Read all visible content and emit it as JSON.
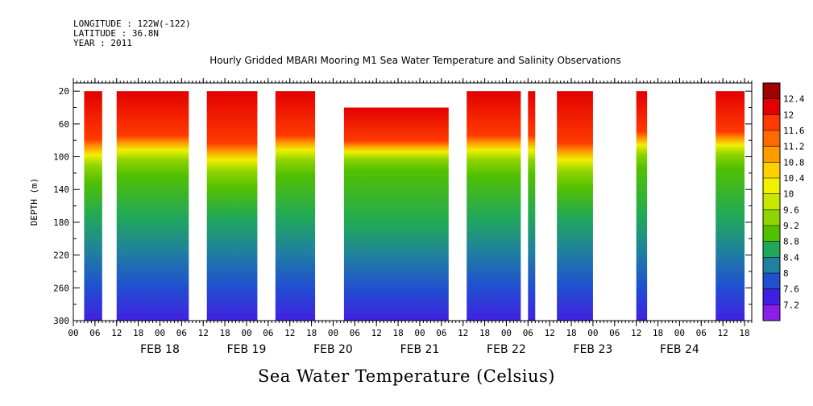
{
  "meta": {
    "longitude": "LONGITUDE : 122W(-122)",
    "latitude": "LATITUDE : 36.8N",
    "year": "YEAR : 2011"
  },
  "chart_data": {
    "type": "heatmap",
    "title": "Hourly Gridded MBARI Mooring M1 Sea Water Temperature and Salinity Observations",
    "footer_title": "Sea Water Temperature (Celsius)",
    "ylabel": "DEPTH (m)",
    "ylim": [
      310,
      0
    ],
    "y_ticks": [
      20,
      60,
      100,
      140,
      180,
      220,
      260,
      300
    ],
    "x_time_range": [
      "2011-02-17T00:00",
      "2011-02-24T20:00"
    ],
    "x_hour_labels": [
      "00",
      "06",
      "12",
      "18",
      "00",
      "06",
      "12",
      "18",
      "00",
      "06",
      "12",
      "18",
      "00",
      "06",
      "12",
      "18",
      "00",
      "06",
      "12",
      "18",
      "00",
      "06",
      "12",
      "18",
      "00",
      "06",
      "12",
      "18",
      "00",
      "06",
      "12",
      "18"
    ],
    "x_day_labels": [
      "FEB 18",
      "FEB 19",
      "FEB 20",
      "FEB 21",
      "FEB 22",
      "FEB 23",
      "FEB 24"
    ],
    "colorbar": {
      "levels": [
        12.4,
        12,
        11.6,
        11.2,
        10.8,
        10.4,
        10,
        9.6,
        9.2,
        8.8,
        8.4,
        8,
        7.6,
        7.2
      ],
      "level_labels": [
        "12.4",
        "12",
        "11.6",
        "11.2",
        "10.8",
        "10.4",
        "10",
        "9.6",
        "9.2",
        "8.8",
        "8.4",
        "8",
        "7.6",
        "7.2"
      ],
      "colors": [
        "#a00000",
        "#e20000",
        "#ff3a00",
        "#ff6a00",
        "#ff9a00",
        "#ffd000",
        "#f0f000",
        "#c8e800",
        "#90d400",
        "#52c000",
        "#20a85a",
        "#2080a0",
        "#2050d0",
        "#4020e0",
        "#8a20e8"
      ]
    },
    "data_segments": [
      {
        "start": "2011-02-17T03:00",
        "end": "2011-02-17T08:00",
        "top_depth": 20,
        "thermocline_depth": 85
      },
      {
        "start": "2011-02-17T12:00",
        "end": "2011-02-18T08:00",
        "top_depth": 20,
        "thermocline_depth": 80
      },
      {
        "start": "2011-02-18T13:00",
        "end": "2011-02-19T03:00",
        "top_depth": 20,
        "thermocline_depth": 90
      },
      {
        "start": "2011-02-19T08:00",
        "end": "2011-02-19T19:00",
        "top_depth": 20,
        "thermocline_depth": 80
      },
      {
        "start": "2011-02-20T03:00",
        "end": "2011-02-21T08:00",
        "top_depth": 40,
        "thermocline_depth": 85
      },
      {
        "start": "2011-02-21T13:00",
        "end": "2011-02-22T04:00",
        "top_depth": 20,
        "thermocline_depth": 80
      },
      {
        "start": "2011-02-22T06:00",
        "end": "2011-02-22T08:00",
        "top_depth": 20,
        "thermocline_depth": 80
      },
      {
        "start": "2011-02-22T14:00",
        "end": "2011-02-23T00:00",
        "top_depth": 20,
        "thermocline_depth": 90
      },
      {
        "start": "2011-02-23T12:00",
        "end": "2011-02-23T15:00",
        "top_depth": 20,
        "thermocline_depth": 75
      },
      {
        "start": "2011-02-24T10:00",
        "end": "2011-02-24T18:00",
        "top_depth": 20,
        "thermocline_depth": 75
      }
    ],
    "grid": false
  }
}
